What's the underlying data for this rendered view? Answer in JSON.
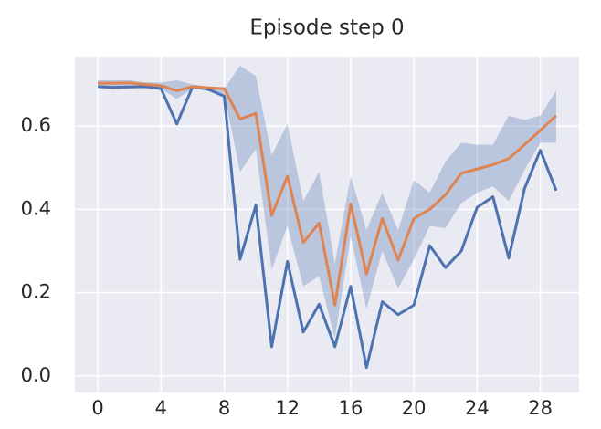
{
  "chart_data": {
    "type": "line",
    "title": "Episode step 0",
    "x": [
      0,
      1,
      2,
      3,
      4,
      5,
      6,
      7,
      8,
      9,
      10,
      11,
      12,
      13,
      14,
      15,
      16,
      17,
      18,
      19,
      20,
      21,
      22,
      23,
      24,
      25,
      26,
      27,
      28,
      29
    ],
    "series": [
      {
        "color": "#4c72b0",
        "values": [
          0.695,
          0.693,
          0.694,
          0.695,
          0.69,
          0.605,
          0.695,
          0.688,
          0.672,
          0.28,
          0.41,
          0.07,
          0.275,
          0.105,
          0.172,
          0.07,
          0.215,
          0.02,
          0.178,
          0.147,
          0.17,
          0.313,
          0.26,
          0.3,
          0.405,
          0.43,
          0.283,
          0.45,
          0.542,
          0.445
        ]
      },
      {
        "color": "#dd8452",
        "values": [
          0.703,
          0.703,
          0.704,
          0.7,
          0.697,
          0.685,
          0.695,
          0.692,
          0.69,
          0.617,
          0.63,
          0.385,
          0.48,
          0.32,
          0.367,
          0.17,
          0.413,
          0.245,
          0.378,
          0.278,
          0.378,
          0.4,
          0.435,
          0.487,
          0.497,
          0.507,
          0.522,
          0.555,
          0.59,
          0.625
        ]
      }
    ],
    "band": {
      "color": "#4c72b0",
      "upper": [
        0.71,
        0.71,
        0.71,
        0.705,
        0.705,
        0.71,
        0.7,
        0.695,
        0.69,
        0.745,
        0.72,
        0.53,
        0.605,
        0.42,
        0.49,
        0.27,
        0.48,
        0.35,
        0.44,
        0.35,
        0.47,
        0.44,
        0.515,
        0.56,
        0.555,
        0.555,
        0.625,
        0.615,
        0.625,
        0.685
      ],
      "lower": [
        0.695,
        0.695,
        0.695,
        0.695,
        0.69,
        0.665,
        0.69,
        0.685,
        0.675,
        0.49,
        0.545,
        0.255,
        0.36,
        0.215,
        0.24,
        0.09,
        0.335,
        0.16,
        0.3,
        0.21,
        0.28,
        0.36,
        0.355,
        0.415,
        0.44,
        0.455,
        0.42,
        0.495,
        0.56,
        0.56
      ]
    },
    "xlim": [
      -1.45,
      30.45
    ],
    "xticks": [
      0,
      4,
      8,
      12,
      16,
      20,
      24,
      28
    ],
    "ylim": [
      -0.04,
      0.767
    ],
    "yticks": [
      {
        "value": 0,
        "label": "0.0"
      },
      0.2,
      0.4,
      0.6
    ],
    "grid": true
  }
}
